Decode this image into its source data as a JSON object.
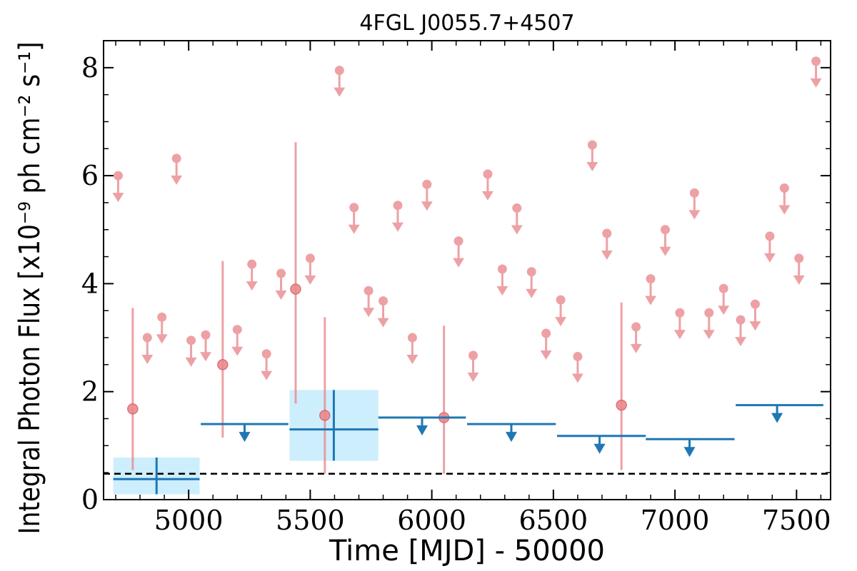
{
  "chart_data": {
    "type": "scatter",
    "title": "4FGL J0055.7+4507",
    "xlabel": "Time [MJD] - 50000",
    "ylabel": "Integral Photon Flux [x10⁻⁹ ph cm⁻² s⁻¹]",
    "xlim": [
      4650,
      7640
    ],
    "ylim": [
      0,
      8.5
    ],
    "xticks": [
      5000,
      5500,
      6000,
      6500,
      7000,
      7500
    ],
    "yticks": [
      0,
      2,
      4,
      6,
      8
    ],
    "grid": false,
    "reference_line": {
      "y": 0.48,
      "style": "dashed",
      "color": "#000000"
    },
    "colors": {
      "fine": "#e98a8f",
      "coarse": "#1f77b4",
      "band": "#cdeefc"
    },
    "fine_upper_limits": [
      [
        4710,
        6.0
      ],
      [
        4830,
        3.0
      ],
      [
        4890,
        3.38
      ],
      [
        4950,
        6.32
      ],
      [
        5010,
        2.95
      ],
      [
        5070,
        3.05
      ],
      [
        5200,
        3.15
      ],
      [
        5260,
        4.36
      ],
      [
        5320,
        2.7
      ],
      [
        5380,
        4.19
      ],
      [
        5500,
        4.47
      ],
      [
        5620,
        7.95
      ],
      [
        5680,
        5.41
      ],
      [
        5740,
        3.87
      ],
      [
        5800,
        3.68
      ],
      [
        5860,
        5.45
      ],
      [
        5920,
        3.0
      ],
      [
        5980,
        5.84
      ],
      [
        6110,
        4.79
      ],
      [
        6170,
        2.67
      ],
      [
        6230,
        6.03
      ],
      [
        6290,
        4.27
      ],
      [
        6350,
        5.4
      ],
      [
        6410,
        4.22
      ],
      [
        6470,
        3.08
      ],
      [
        6530,
        3.7
      ],
      [
        6600,
        2.65
      ],
      [
        6660,
        6.57
      ],
      [
        6720,
        4.93
      ],
      [
        6840,
        3.2
      ],
      [
        6900,
        4.09
      ],
      [
        6960,
        5.0
      ],
      [
        7020,
        3.46
      ],
      [
        7080,
        5.68
      ],
      [
        7140,
        3.46
      ],
      [
        7200,
        3.91
      ],
      [
        7270,
        3.33
      ],
      [
        7330,
        3.62
      ],
      [
        7390,
        4.88
      ],
      [
        7450,
        5.77
      ],
      [
        7510,
        4.47
      ],
      [
        7580,
        8.12
      ]
    ],
    "fine_detections": [
      {
        "x": 4770,
        "y": 1.68,
        "ylo": 0.55,
        "yhi": 3.55
      },
      {
        "x": 5140,
        "y": 2.5,
        "ylo": 1.15,
        "yhi": 4.42
      },
      {
        "x": 5440,
        "y": 3.9,
        "ylo": 1.78,
        "yhi": 6.62
      },
      {
        "x": 5560,
        "y": 1.56,
        "ylo": 0.48,
        "yhi": 3.38
      },
      {
        "x": 6050,
        "y": 1.52,
        "ylo": 0.48,
        "yhi": 3.22
      },
      {
        "x": 6780,
        "y": 1.75,
        "ylo": 0.55,
        "yhi": 3.65
      }
    ],
    "coarse_detections": [
      {
        "x": 4868,
        "xlo": 4690,
        "xhi": 5045,
        "y": 0.38,
        "ylo": 0.1,
        "yhi": 0.78
      },
      {
        "x": 5597,
        "xlo": 5415,
        "xhi": 5780,
        "y": 1.3,
        "ylo": 0.72,
        "yhi": 2.03
      }
    ],
    "coarse_upper_limits": [
      {
        "xlo": 5050,
        "xhi": 5410,
        "y": 1.4,
        "arrow_x": 5230
      },
      {
        "xlo": 5780,
        "xhi": 6140,
        "y": 1.52,
        "arrow_x": 5960
      },
      {
        "xlo": 6145,
        "xhi": 6510,
        "y": 1.4,
        "arrow_x": 6327
      },
      {
        "xlo": 6515,
        "xhi": 6880,
        "y": 1.18,
        "arrow_x": 6690
      },
      {
        "xlo": 6880,
        "xhi": 7245,
        "y": 1.12,
        "arrow_x": 7060
      },
      {
        "xlo": 7250,
        "xhi": 7610,
        "y": 1.75,
        "arrow_x": 7420
      }
    ]
  }
}
